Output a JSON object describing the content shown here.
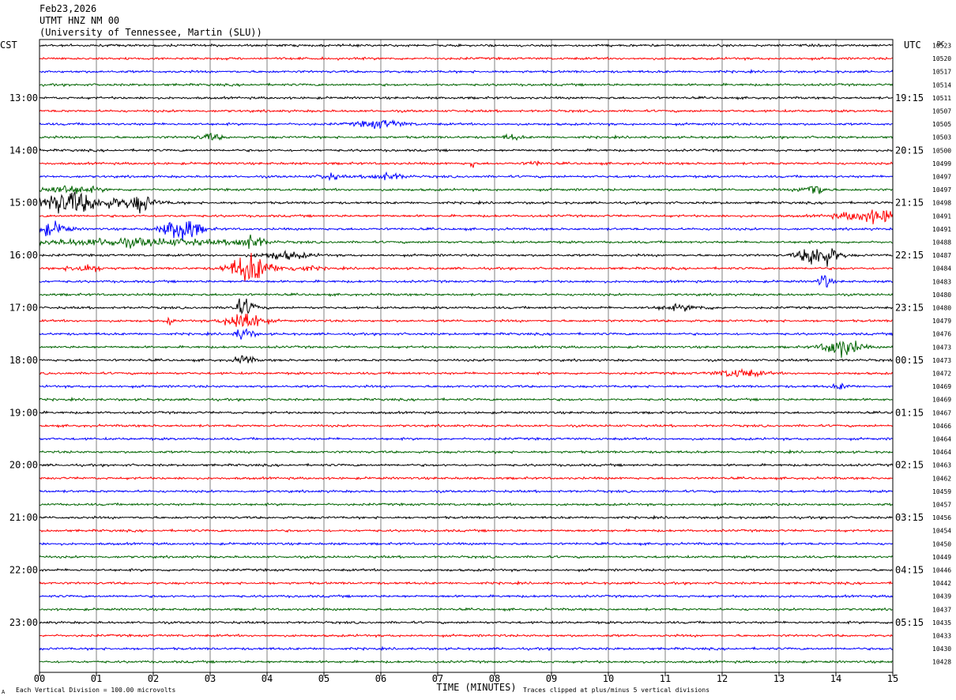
{
  "header": {
    "date": "Feb23,2026",
    "station": "UTMT HNZ NM 00",
    "network": "(University of Tennessee, Martin (SLU))"
  },
  "left_axis_label": "CST",
  "right_axis_label": "UTC",
  "dc_label": "DC",
  "xlabel": "TIME (MINUTES)",
  "footer_left": "Each Vertical Division =  100.00 microvolts",
  "footer_right": "Traces clipped at plus/minus 5 vertical divisions",
  "corner_mark": "A",
  "colors": {
    "cycle": [
      "#000000",
      "#ff0000",
      "#0000ff",
      "#006400"
    ],
    "grid": "#808080",
    "frame": "#000000"
  },
  "chart_data": {
    "type": "line",
    "title": "UTMT HNZ NM 00",
    "xlabel": "TIME (MINUTES)",
    "xlim": [
      0,
      15
    ],
    "x_ticks": [
      "00",
      "01",
      "02",
      "03",
      "04",
      "05",
      "06",
      "07",
      "08",
      "09",
      "10",
      "11",
      "12",
      "13",
      "14",
      "15"
    ],
    "minutes_per_trace": 15,
    "trace_count": 48,
    "left_hour_labels": [
      "13:00",
      "14:00",
      "15:00",
      "16:00",
      "17:00",
      "18:00",
      "19:00",
      "20:00",
      "21:00",
      "22:00",
      "23:00"
    ],
    "right_hour_labels": [
      "19:15",
      "20:15",
      "21:15",
      "22:15",
      "23:15",
      "00:15",
      "01:15",
      "02:15",
      "03:15",
      "04:15",
      "05:15"
    ],
    "dc_values": [
      "10523",
      "10520",
      "10517",
      "10514",
      "10511",
      "10507",
      "10505",
      "10503",
      "10500",
      "10499",
      "10497",
      "10497",
      "10498",
      "10491",
      "10491",
      "10488",
      "10487",
      "10484",
      "10483",
      "10480",
      "10480",
      "10479",
      "10476",
      "10473",
      "10473",
      "10472",
      "10469",
      "10469",
      "10467",
      "10466",
      "10464",
      "10464",
      "10463",
      "10462",
      "10459",
      "10457",
      "10456",
      "10454",
      "10450",
      "10449",
      "10446",
      "10442",
      "10439",
      "10437",
      "10435",
      "10433",
      "10430",
      "10428"
    ],
    "noise_amplitude_divisions": 0.35,
    "clip_divisions": 5,
    "events": [
      {
        "trace": 6,
        "minute": 6.0,
        "amplitude": 1.2,
        "duration_min": 0.8
      },
      {
        "trace": 7,
        "minute": 3.0,
        "amplitude": 1.0,
        "duration_min": 0.4
      },
      {
        "trace": 7,
        "minute": 8.3,
        "amplitude": 0.8,
        "duration_min": 0.3
      },
      {
        "trace": 9,
        "minute": 8.7,
        "amplitude": 0.6,
        "duration_min": 0.3
      },
      {
        "trace": 9,
        "minute": 7.6,
        "amplitude": 3.5,
        "duration_min": 0.05
      },
      {
        "trace": 10,
        "minute": 6.1,
        "amplitude": 1.0,
        "duration_min": 0.6
      },
      {
        "trace": 10,
        "minute": 5.1,
        "amplitude": 0.8,
        "duration_min": 0.4
      },
      {
        "trace": 11,
        "minute": 0.5,
        "amplitude": 1.2,
        "duration_min": 1.0
      },
      {
        "trace": 12,
        "minute": 0.5,
        "amplitude": 3.5,
        "duration_min": 1.0
      },
      {
        "trace": 12,
        "minute": 1.8,
        "amplitude": 2.0,
        "duration_min": 0.3
      },
      {
        "trace": 11,
        "minute": 13.6,
        "amplitude": 2.0,
        "duration_min": 0.4
      },
      {
        "trace": 12,
        "minute": 1.5,
        "amplitude": 1.2,
        "duration_min": 1.2
      },
      {
        "trace": 13,
        "minute": 14.7,
        "amplitude": 2.0,
        "duration_min": 1.2
      },
      {
        "trace": 14,
        "minute": 0.2,
        "amplitude": 2.0,
        "duration_min": 0.6
      },
      {
        "trace": 14,
        "minute": 2.5,
        "amplitude": 4.0,
        "duration_min": 0.6
      },
      {
        "trace": 15,
        "minute": 1.6,
        "amplitude": 1.2,
        "duration_min": 3.0
      },
      {
        "trace": 15,
        "minute": 3.7,
        "amplitude": 2.0,
        "duration_min": 0.5
      },
      {
        "trace": 16,
        "minute": 4.3,
        "amplitude": 1.2,
        "duration_min": 0.8
      },
      {
        "trace": 16,
        "minute": 13.7,
        "amplitude": 4.0,
        "duration_min": 0.6
      },
      {
        "trace": 17,
        "minute": 3.7,
        "amplitude": 4.5,
        "duration_min": 0.7
      },
      {
        "trace": 17,
        "minute": 0.8,
        "amplitude": 1.2,
        "duration_min": 0.6
      },
      {
        "trace": 17,
        "minute": 4.6,
        "amplitude": 0.8,
        "duration_min": 0.6
      },
      {
        "trace": 18,
        "minute": 13.8,
        "amplitude": 2.5,
        "duration_min": 0.2
      },
      {
        "trace": 20,
        "minute": 3.6,
        "amplitude": 2.5,
        "duration_min": 0.4
      },
      {
        "trace": 20,
        "minute": 11.3,
        "amplitude": 0.7,
        "duration_min": 0.9
      },
      {
        "trace": 21,
        "minute": 3.6,
        "amplitude": 3.5,
        "duration_min": 0.6
      },
      {
        "trace": 21,
        "minute": 2.3,
        "amplitude": 1.2,
        "duration_min": 0.1
      },
      {
        "trace": 22,
        "minute": 3.6,
        "amplitude": 2.0,
        "duration_min": 0.3
      },
      {
        "trace": 23,
        "minute": 14.1,
        "amplitude": 3.0,
        "duration_min": 0.6
      },
      {
        "trace": 24,
        "minute": 3.6,
        "amplitude": 1.5,
        "duration_min": 0.3
      },
      {
        "trace": 25,
        "minute": 12.3,
        "amplitude": 1.2,
        "duration_min": 0.8
      },
      {
        "trace": 26,
        "minute": 14.1,
        "amplitude": 0.8,
        "duration_min": 0.3
      }
    ]
  }
}
